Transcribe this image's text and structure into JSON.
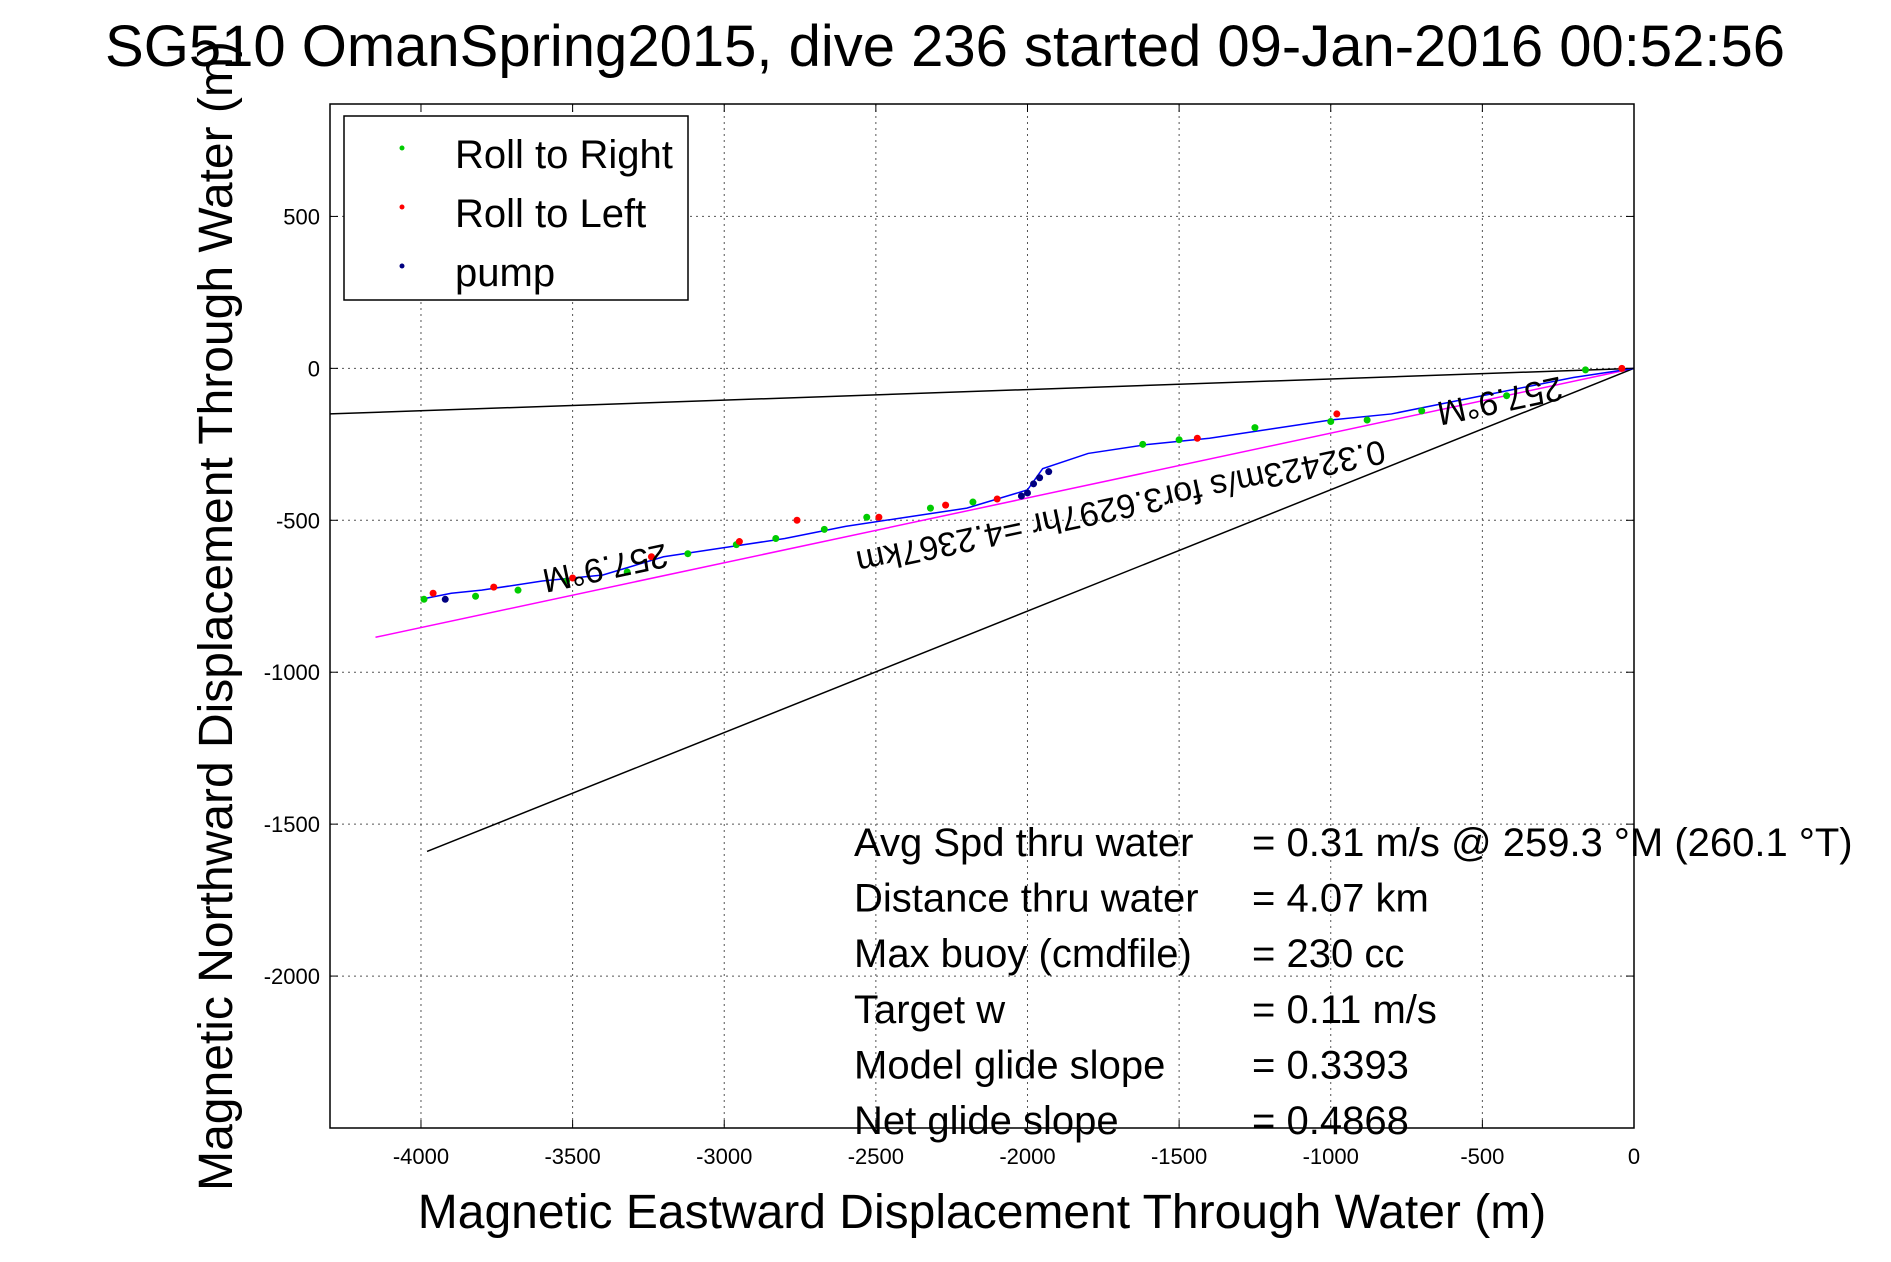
{
  "chart_data": {
    "type": "line",
    "title": "SG510 OmanSpring2015, dive 236 started 09-Jan-2016 00:52:56",
    "xlabel": "Magnetic Eastward Displacement Through Water (m)",
    "ylabel": "Magnetic Northward Displacement Through Water (m)",
    "xlim": [
      -4300,
      0
    ],
    "ylim": [
      -2500,
      870
    ],
    "x_ticks": [
      -4000,
      -3500,
      -3000,
      -2500,
      -2000,
      -1500,
      -1000,
      -500,
      0
    ],
    "y_ticks": [
      500,
      0,
      -500,
      -1000,
      -1500,
      -2000
    ],
    "x_tick_labels": [
      "-4000",
      "-3500",
      "-3000",
      "-2500",
      "-2000",
      "-1500",
      "-1000",
      "-500",
      "0"
    ],
    "y_tick_labels": [
      "500",
      "0",
      "-500",
      "-1000",
      "-1500",
      "-2000"
    ],
    "grid": true,
    "legend_position": "top-left",
    "legend": [
      {
        "label": "Roll to Right",
        "color": "#00cc00"
      },
      {
        "label": "Roll to Left",
        "color": "#ff0000"
      },
      {
        "label": "pump",
        "color": "#000080"
      }
    ],
    "track": {
      "color": "#0000ff",
      "x": [
        0,
        -200,
        -400,
        -600,
        -800,
        -1000,
        -1200,
        -1400,
        -1600,
        -1800,
        -1950,
        -2000,
        -2100,
        -2200,
        -2400,
        -2600,
        -2800,
        -3000,
        -3200,
        -3400,
        -3600,
        -3800,
        -3900,
        -4000
      ],
      "y": [
        0,
        -30,
        -70,
        -110,
        -150,
        -170,
        -200,
        -230,
        -250,
        -280,
        -330,
        -400,
        -430,
        -460,
        -490,
        -520,
        -560,
        -590,
        -620,
        -680,
        -700,
        -730,
        -740,
        -760
      ]
    },
    "roll_right_points": {
      "x": [
        -160,
        -420,
        -700,
        -880,
        -1000,
        -1250,
        -1500,
        -1620,
        -2180,
        -2320,
        -2530,
        -2670,
        -2830,
        -2960,
        -3120,
        -3320,
        -3520,
        -3680,
        -3820,
        -3990
      ],
      "y": [
        -5,
        -90,
        -140,
        -170,
        -175,
        -195,
        -235,
        -250,
        -440,
        -460,
        -490,
        -530,
        -560,
        -580,
        -610,
        -670,
        -700,
        -730,
        -750,
        -760
      ]
    },
    "roll_left_points": {
      "x": [
        -40,
        -980,
        -1440,
        -2100,
        -2270,
        -2490,
        -2760,
        -2950,
        -3240,
        -3500,
        -3760,
        -3960
      ],
      "y": [
        0,
        -150,
        -230,
        -430,
        -450,
        -490,
        -500,
        -570,
        -620,
        -690,
        -720,
        -740
      ]
    },
    "pump_points": {
      "x": [
        -2020,
        -2000,
        -1980,
        -1960,
        -1930,
        -3920
      ],
      "y": [
        -420,
        -410,
        -380,
        -360,
        -340,
        -760
      ]
    },
    "lines": [
      {
        "name": "",
        "color": "#ff00ff",
        "x": [
          -4150,
          0
        ],
        "y": [
          -885,
          0
        ]
      },
      {
        "name": "",
        "color": "#000000",
        "x": [
          -4300,
          0
        ],
        "y": [
          -150,
          0
        ]
      },
      {
        "name": "",
        "color": "#000000",
        "x": [
          -3980,
          0
        ],
        "y": [
          -1590,
          0
        ]
      }
    ],
    "annotations": [
      {
        "text": "257.9°M",
        "x": -450,
        "y": -70,
        "rotation": 168
      },
      {
        "text": "0.32423m/s for3.6297hr =4.2367km",
        "x": -1700,
        "y": -420,
        "rotation": 168
      },
      {
        "text": "257.9°M",
        "x": -3400,
        "y": -620,
        "rotation": 168
      }
    ],
    "stats": [
      {
        "label": "Avg Spd thru water",
        "value": "=  0.31 m/s @ 259.3 °M (260.1 °T)"
      },
      {
        "label": "Distance thru water",
        "value": "=  4.07 km"
      },
      {
        "label": "Max buoy (cmdfile)",
        "value": "= 230 cc"
      },
      {
        "label": "Target w",
        "value": "= 0.11 m/s"
      },
      {
        "label": "Model glide slope",
        "value": "= 0.3393"
      },
      {
        "label": "Net glide slope",
        "value": "= 0.4868"
      }
    ]
  }
}
